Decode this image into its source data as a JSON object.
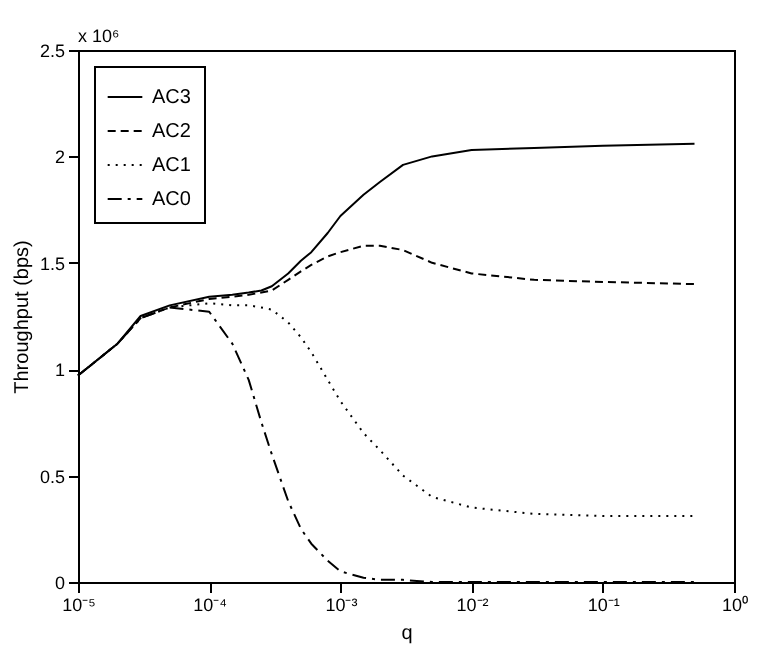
{
  "chart_data": {
    "type": "line",
    "xlabel": "q",
    "ylabel": "Throughput (bps)",
    "log": "x",
    "x": [
      1e-05,
      2e-05,
      3e-05,
      5e-05,
      0.0001,
      0.00015,
      0.0002,
      0.00025,
      0.0003,
      0.0004,
      0.0005,
      0.0006,
      0.0008,
      0.001,
      0.0015,
      0.002,
      0.003,
      0.005,
      0.01,
      0.03,
      0.1,
      0.5
    ],
    "series": [
      {
        "name": "AC3",
        "color": "#000000",
        "line_style": "solid",
        "values": [
          0.97,
          1.12,
          1.25,
          1.3,
          1.34,
          1.35,
          1.36,
          1.37,
          1.39,
          1.45,
          1.51,
          1.55,
          1.64,
          1.72,
          1.82,
          1.88,
          1.96,
          2.0,
          2.03,
          2.04,
          2.05,
          2.06
        ]
      },
      {
        "name": "AC2",
        "color": "#000000",
        "line_style": "dashed",
        "values": [
          0.97,
          1.12,
          1.24,
          1.29,
          1.33,
          1.34,
          1.35,
          1.36,
          1.37,
          1.42,
          1.46,
          1.49,
          1.53,
          1.55,
          1.58,
          1.58,
          1.56,
          1.5,
          1.45,
          1.42,
          1.41,
          1.4
        ]
      },
      {
        "name": "AC1",
        "color": "#000000",
        "line_style": "dotted",
        "values": [
          0.97,
          1.12,
          1.24,
          1.29,
          1.31,
          1.3,
          1.3,
          1.29,
          1.28,
          1.22,
          1.15,
          1.08,
          0.95,
          0.85,
          0.7,
          0.62,
          0.5,
          0.4,
          0.35,
          0.32,
          0.31,
          0.31
        ]
      },
      {
        "name": "AC0",
        "color": "#000000",
        "line_style": "dashdot",
        "values": [
          0.97,
          1.12,
          1.24,
          1.29,
          1.27,
          1.12,
          0.95,
          0.75,
          0.6,
          0.38,
          0.25,
          0.18,
          0.1,
          0.05,
          0.02,
          0.01,
          0.01,
          0,
          0,
          0,
          0,
          0
        ]
      }
    ],
    "xlim": [
      1e-05,
      1
    ],
    "xticks": [
      {
        "value": 1e-05,
        "label": "10⁻⁵"
      },
      {
        "value": 0.0001,
        "label": "10⁻⁴"
      },
      {
        "value": 0.001,
        "label": "10⁻³"
      },
      {
        "value": 0.01,
        "label": "10⁻²"
      },
      {
        "value": 0.1,
        "label": "10⁻¹"
      },
      {
        "value": 1,
        "label": "10⁰"
      }
    ],
    "ylim": [
      0,
      2.5
    ],
    "yticks": [
      0,
      0.5,
      1,
      1.5,
      2,
      2.5
    ],
    "annotations": [
      "x 10⁶"
    ],
    "grid": false,
    "legend": "top left",
    "marker": "none"
  }
}
